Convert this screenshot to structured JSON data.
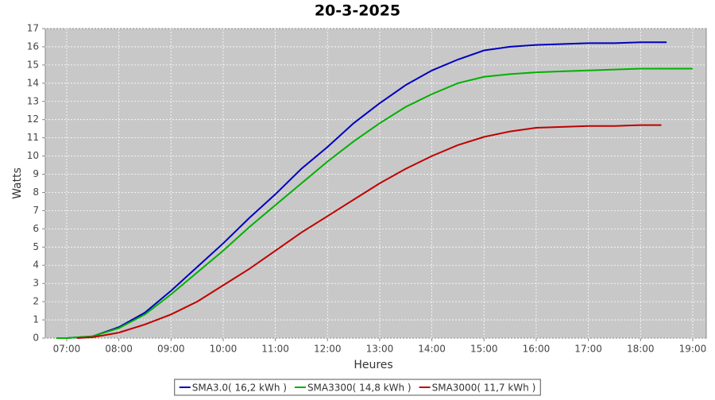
{
  "chart_data": {
    "type": "line",
    "title": "20-3-2025",
    "x_label": "Heures",
    "y_label": "Watts",
    "xlim": [
      6.59,
      19.26
    ],
    "xticks": [
      {
        "value": 7,
        "label": "07:00"
      },
      {
        "value": 8,
        "label": "08:00"
      },
      {
        "value": 9,
        "label": "09:00"
      },
      {
        "value": 10,
        "label": "10:00"
      },
      {
        "value": 11,
        "label": "11:00"
      },
      {
        "value": 12,
        "label": "12:00"
      },
      {
        "value": 13,
        "label": "13:00"
      },
      {
        "value": 14,
        "label": "14:00"
      },
      {
        "value": 15,
        "label": "15:00"
      },
      {
        "value": 16,
        "label": "16:00"
      },
      {
        "value": 17,
        "label": "17:00"
      },
      {
        "value": 18,
        "label": "18:00"
      },
      {
        "value": 19,
        "label": "19:00"
      }
    ],
    "ylim": [
      0,
      17
    ],
    "yticks": [
      0,
      1,
      2,
      3,
      4,
      5,
      6,
      7,
      8,
      9,
      10,
      11,
      12,
      13,
      14,
      15,
      16,
      17
    ],
    "grid": true,
    "legend": "bottom",
    "series": [
      {
        "name": "SMA3.0( 16,2 kWh )",
        "color": "#0000c0",
        "x": [
          7.0,
          7.5,
          8.0,
          8.5,
          9.0,
          9.5,
          10.0,
          10.5,
          11.0,
          11.5,
          12.0,
          12.5,
          13.0,
          13.5,
          14.0,
          14.5,
          15.0,
          15.5,
          16.0,
          16.5,
          17.0,
          17.5,
          18.0,
          18.5
        ],
        "values": [
          0,
          0.1,
          0.6,
          1.4,
          2.6,
          3.9,
          5.2,
          6.6,
          7.9,
          9.3,
          10.5,
          11.8,
          12.9,
          13.9,
          14.7,
          15.3,
          15.8,
          16.0,
          16.1,
          16.15,
          16.2,
          16.2,
          16.25,
          16.25
        ]
      },
      {
        "name": "SMA3300( 14,8 kWh )",
        "color": "#00b000",
        "x": [
          6.8,
          7.0,
          7.5,
          8.0,
          8.5,
          9.0,
          9.5,
          10.0,
          10.5,
          11.0,
          11.5,
          12.0,
          12.5,
          13.0,
          13.5,
          14.0,
          14.5,
          15.0,
          15.5,
          16.0,
          16.5,
          17.0,
          17.5,
          18.0,
          18.5,
          19.0
        ],
        "values": [
          0,
          0,
          0.1,
          0.55,
          1.3,
          2.4,
          3.6,
          4.8,
          6.1,
          7.3,
          8.5,
          9.7,
          10.8,
          11.8,
          12.7,
          13.4,
          14.0,
          14.35,
          14.5,
          14.6,
          14.65,
          14.7,
          14.75,
          14.8,
          14.8,
          14.8
        ]
      },
      {
        "name": "SMA3000( 11,7 kWh )",
        "color": "#c00000",
        "x": [
          7.2,
          7.5,
          8.0,
          8.5,
          9.0,
          9.5,
          10.0,
          10.5,
          11.0,
          11.5,
          12.0,
          12.5,
          13.0,
          13.5,
          14.0,
          14.5,
          15.0,
          15.5,
          16.0,
          16.5,
          17.0,
          17.5,
          18.0,
          18.4
        ],
        "values": [
          0,
          0.05,
          0.3,
          0.75,
          1.3,
          2.0,
          2.9,
          3.8,
          4.8,
          5.8,
          6.7,
          7.6,
          8.5,
          9.3,
          10.0,
          10.6,
          11.05,
          11.35,
          11.55,
          11.6,
          11.65,
          11.65,
          11.7,
          11.7
        ]
      }
    ]
  }
}
